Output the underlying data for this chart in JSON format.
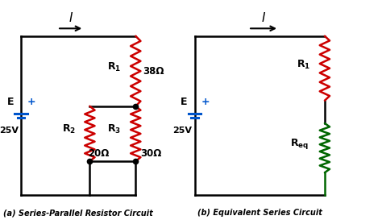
{
  "bg_color": "#ffffff",
  "black": "#000000",
  "red": "#cc0000",
  "blue": "#0055cc",
  "green": "#006600",
  "title_a": "(a) Series-Parallel Resistor Circuit",
  "title_b": "(b) Equivalent Series Circuit",
  "label_38": "38Ω",
  "label_20": "20Ω",
  "label_30": "30Ω",
  "figsize": [
    4.74,
    2.73
  ],
  "dpi": 100
}
